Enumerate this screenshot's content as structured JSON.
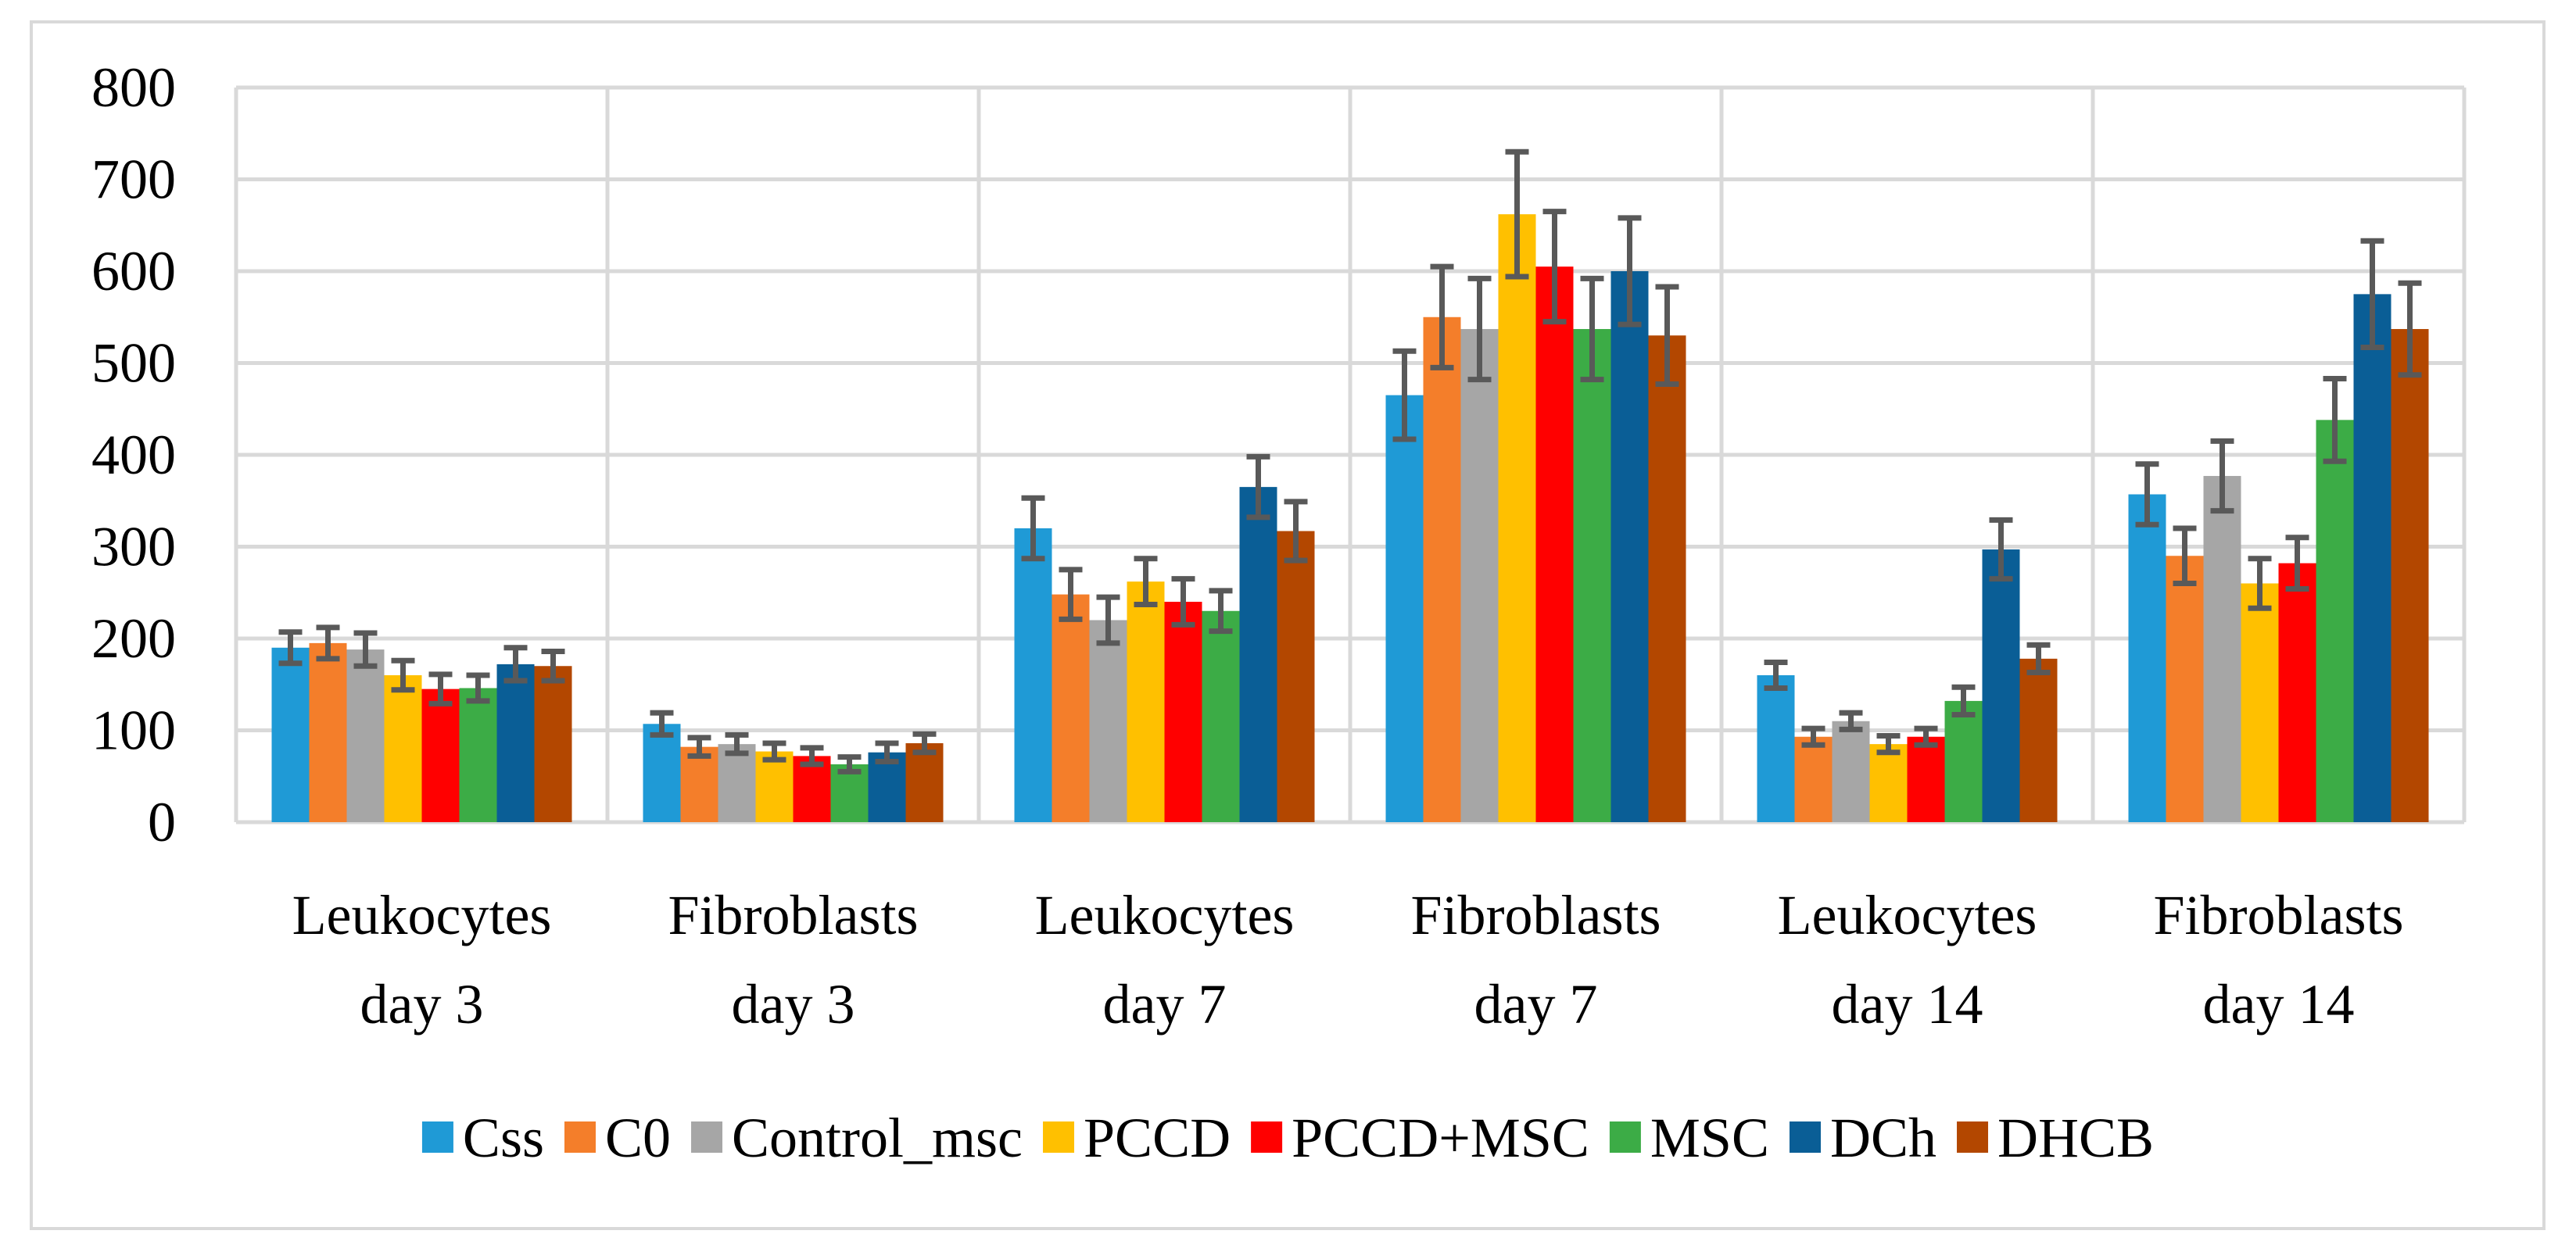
{
  "chart_data": {
    "type": "bar",
    "title": "",
    "xlabel": "",
    "ylabel": "",
    "ylim": [
      0,
      800
    ],
    "yticks": [
      "0",
      "100",
      "200",
      "300",
      "400",
      "500",
      "600",
      "700",
      "800"
    ],
    "grid": true,
    "legend_position": "bottom",
    "categories": [
      [
        "Leukocytes",
        "day 3"
      ],
      [
        "Fibroblasts",
        "day 3"
      ],
      [
        "Leukocytes",
        "day 7"
      ],
      [
        "Fibroblasts",
        "day 7"
      ],
      [
        "Leukocytes",
        "day 14"
      ],
      [
        "Fibroblasts",
        "day 14"
      ]
    ],
    "series": [
      {
        "name": "Css",
        "color": "#1f9ad6",
        "values": [
          190,
          107,
          320,
          465,
          160,
          357
        ],
        "errors": [
          17,
          12,
          33,
          48,
          14,
          33
        ]
      },
      {
        "name": "C0",
        "color": "#f47e2a",
        "values": [
          195,
          82,
          248,
          550,
          93,
          290
        ],
        "errors": [
          17,
          10,
          27,
          55,
          9,
          30
        ]
      },
      {
        "name": "Control_msc",
        "color": "#a6a6a6",
        "values": [
          188,
          85,
          220,
          537,
          110,
          377
        ],
        "errors": [
          18,
          10,
          25,
          55,
          9,
          38
        ]
      },
      {
        "name": "PCCD",
        "color": "#ffc000",
        "values": [
          160,
          77,
          262,
          662,
          85,
          260
        ],
        "errors": [
          16,
          9,
          25,
          68,
          9,
          27
        ]
      },
      {
        "name": "PCCD+MSC",
        "color": "#ff0000",
        "values": [
          145,
          72,
          240,
          605,
          93,
          282
        ],
        "errors": [
          16,
          9,
          25,
          60,
          9,
          28
        ]
      },
      {
        "name": "MSC",
        "color": "#3cac46",
        "values": [
          146,
          63,
          230,
          537,
          132,
          438
        ],
        "errors": [
          14,
          8,
          22,
          55,
          15,
          45
        ]
      },
      {
        "name": "DCh",
        "color": "#0a5e96",
        "values": [
          172,
          76,
          365,
          600,
          297,
          575
        ],
        "errors": [
          18,
          10,
          33,
          58,
          32,
          58
        ]
      },
      {
        "name": "DHCB",
        "color": "#b34700",
        "values": [
          170,
          86,
          317,
          530,
          178,
          537
        ],
        "errors": [
          16,
          10,
          32,
          53,
          15,
          50
        ]
      }
    ]
  }
}
